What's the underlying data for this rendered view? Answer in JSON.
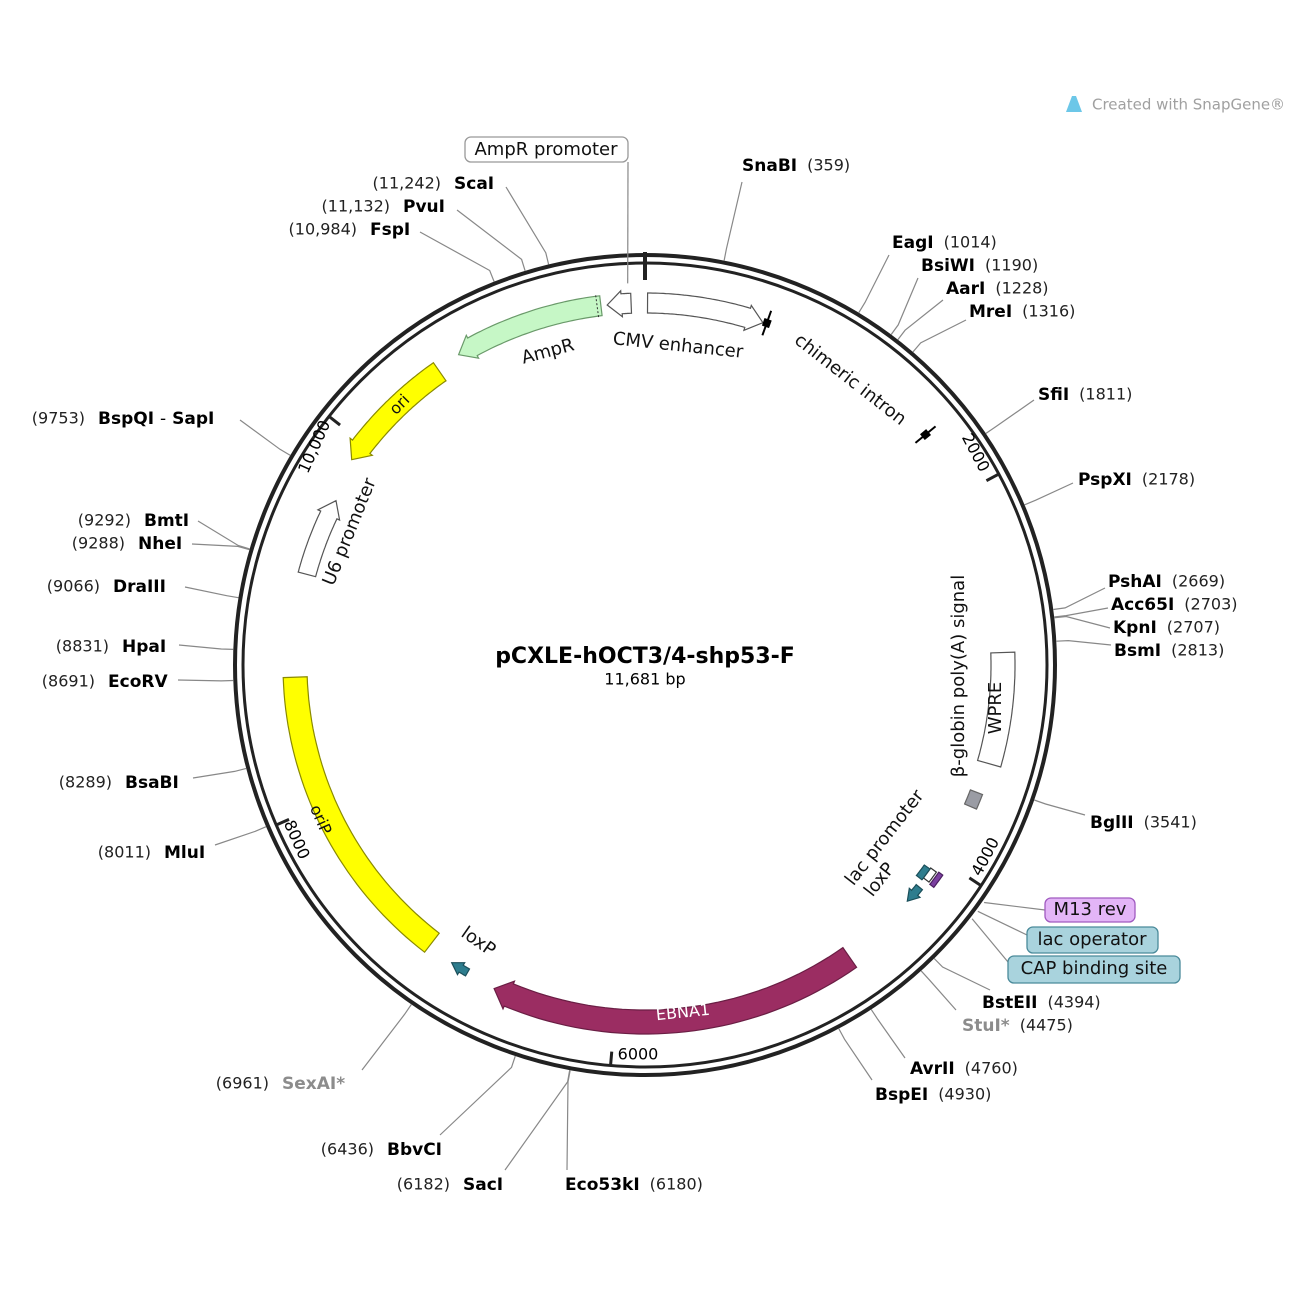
{
  "header": {
    "watermark": "Created with SnapGene®"
  },
  "map": {
    "title": "pCXLE-hOCT3/4-shp53-F",
    "length": {
      "value": 11681,
      "label": "11,681 bp"
    },
    "ticks": [
      {
        "value": 2000,
        "label": "2000"
      },
      {
        "value": 4000,
        "label": "4000"
      },
      {
        "value": 6000,
        "label": "6000"
      },
      {
        "value": 8000,
        "label": "8000"
      },
      {
        "value": 10000,
        "label": "10,000"
      }
    ],
    "sites": [
      {
        "name": "SnaBI",
        "position": 359,
        "label": "(359)"
      },
      {
        "name": "EagI",
        "position": 1014,
        "label": "(1014)"
      },
      {
        "name": "BsiWI",
        "position": 1190,
        "label": "(1190)"
      },
      {
        "name": "AarI",
        "position": 1228,
        "label": "(1228)"
      },
      {
        "name": "MreI",
        "position": 1316,
        "label": "(1316)"
      },
      {
        "name": "SfiI",
        "position": 1811,
        "label": "(1811)"
      },
      {
        "name": "PspXI",
        "position": 2178,
        "label": "(2178)"
      },
      {
        "name": "PshAI",
        "position": 2669,
        "label": "(2669)"
      },
      {
        "name": "Acc65I",
        "position": 2703,
        "label": "(2703)"
      },
      {
        "name": "KpnI",
        "position": 2707,
        "label": "(2707)"
      },
      {
        "name": "BsmI",
        "position": 2813,
        "label": "(2813)"
      },
      {
        "name": "BglII",
        "position": 3541,
        "label": "(3541)"
      },
      {
        "name": "BstEII",
        "position": 4394,
        "label": "(4394)"
      },
      {
        "name": "StuI*",
        "position": 4475,
        "label": "(4475)",
        "color": "#8c8c8c"
      },
      {
        "name": "AvrII",
        "position": 4760,
        "label": "(4760)"
      },
      {
        "name": "BspEI",
        "position": 4930,
        "label": "(4930)"
      },
      {
        "name": "Eco53kI",
        "position": 6180,
        "label": "(6180)"
      },
      {
        "name": "SacI",
        "position": 6182,
        "label": "(6182)"
      },
      {
        "name": "BbvCI",
        "position": 6436,
        "label": "(6436)"
      },
      {
        "name": "SexAI*",
        "position": 6961,
        "label": "(6961)",
        "color": "#8c8c8c"
      },
      {
        "name": "MluI",
        "position": 8011,
        "label": "(8011)"
      },
      {
        "name": "BsaBI",
        "position": 8289,
        "label": "(8289)"
      },
      {
        "name": "EcoRV",
        "position": 8691,
        "label": "(8691)"
      },
      {
        "name": "HpaI",
        "position": 8831,
        "label": "(8831)"
      },
      {
        "name": "DraIII",
        "position": 9066,
        "label": "(9066)"
      },
      {
        "name": "NheI",
        "position": 9288,
        "label": "(9288)"
      },
      {
        "name": "BmtI",
        "position": 9292,
        "label": "(9292)"
      },
      {
        "names": [
          "BspQI",
          "SapI"
        ],
        "separator": "-",
        "position": 9753,
        "label": "(9753)"
      },
      {
        "name": "FspI",
        "position": 10984,
        "label": "(10,984)"
      },
      {
        "name": "PvuI",
        "position": 11132,
        "label": "(11,132)"
      },
      {
        "name": "ScaI",
        "position": 11242,
        "label": "(11,242)"
      }
    ],
    "features": [
      {
        "label": "AmpR promoter"
      },
      {
        "label": "AmpR"
      },
      {
        "label": "CMV enhancer"
      },
      {
        "label": "chimeric intron"
      },
      {
        "label": "ori"
      },
      {
        "label": "U6 promoter"
      },
      {
        "label": "oriP"
      },
      {
        "label": "loxP"
      },
      {
        "label": "EBNA1"
      },
      {
        "label": "loxP"
      },
      {
        "label": "lac promoter"
      },
      {
        "label": "β-globin poly(A) signal"
      },
      {
        "label": "WPRE"
      },
      {
        "label": "M13 rev"
      },
      {
        "label": "lac operator"
      },
      {
        "label": "CAP binding site"
      }
    ]
  }
}
